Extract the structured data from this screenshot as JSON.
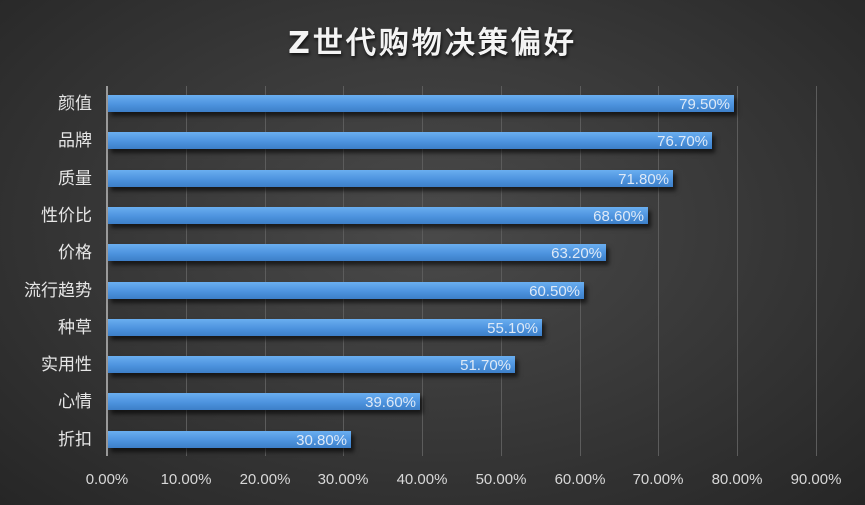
{
  "chart_data": {
    "type": "bar",
    "orientation": "horizontal",
    "title": "Z世代购物决策偏好",
    "xlabel": "",
    "ylabel": "",
    "categories": [
      "颜值",
      "品牌",
      "质量",
      "性价比",
      "价格",
      "流行趋势",
      "种草",
      "实用性",
      "心情",
      "折扣"
    ],
    "values": [
      79.5,
      76.7,
      71.8,
      68.6,
      63.2,
      60.5,
      55.1,
      51.7,
      39.6,
      30.8
    ],
    "value_labels": [
      "79.50%",
      "76.70%",
      "71.80%",
      "68.60%",
      "63.20%",
      "60.50%",
      "55.10%",
      "51.70%",
      "39.60%",
      "30.80%"
    ],
    "xlim": [
      0,
      90
    ],
    "x_ticks": [
      "0.00%",
      "10.00%",
      "20.00%",
      "30.00%",
      "40.00%",
      "50.00%",
      "60.00%",
      "70.00%",
      "80.00%",
      "90.00%"
    ],
    "grid": "vertical",
    "legend": "none",
    "colors": {
      "bar": "#4d93de",
      "background": "#3a3a3a",
      "text": "#e6e6e6"
    }
  }
}
